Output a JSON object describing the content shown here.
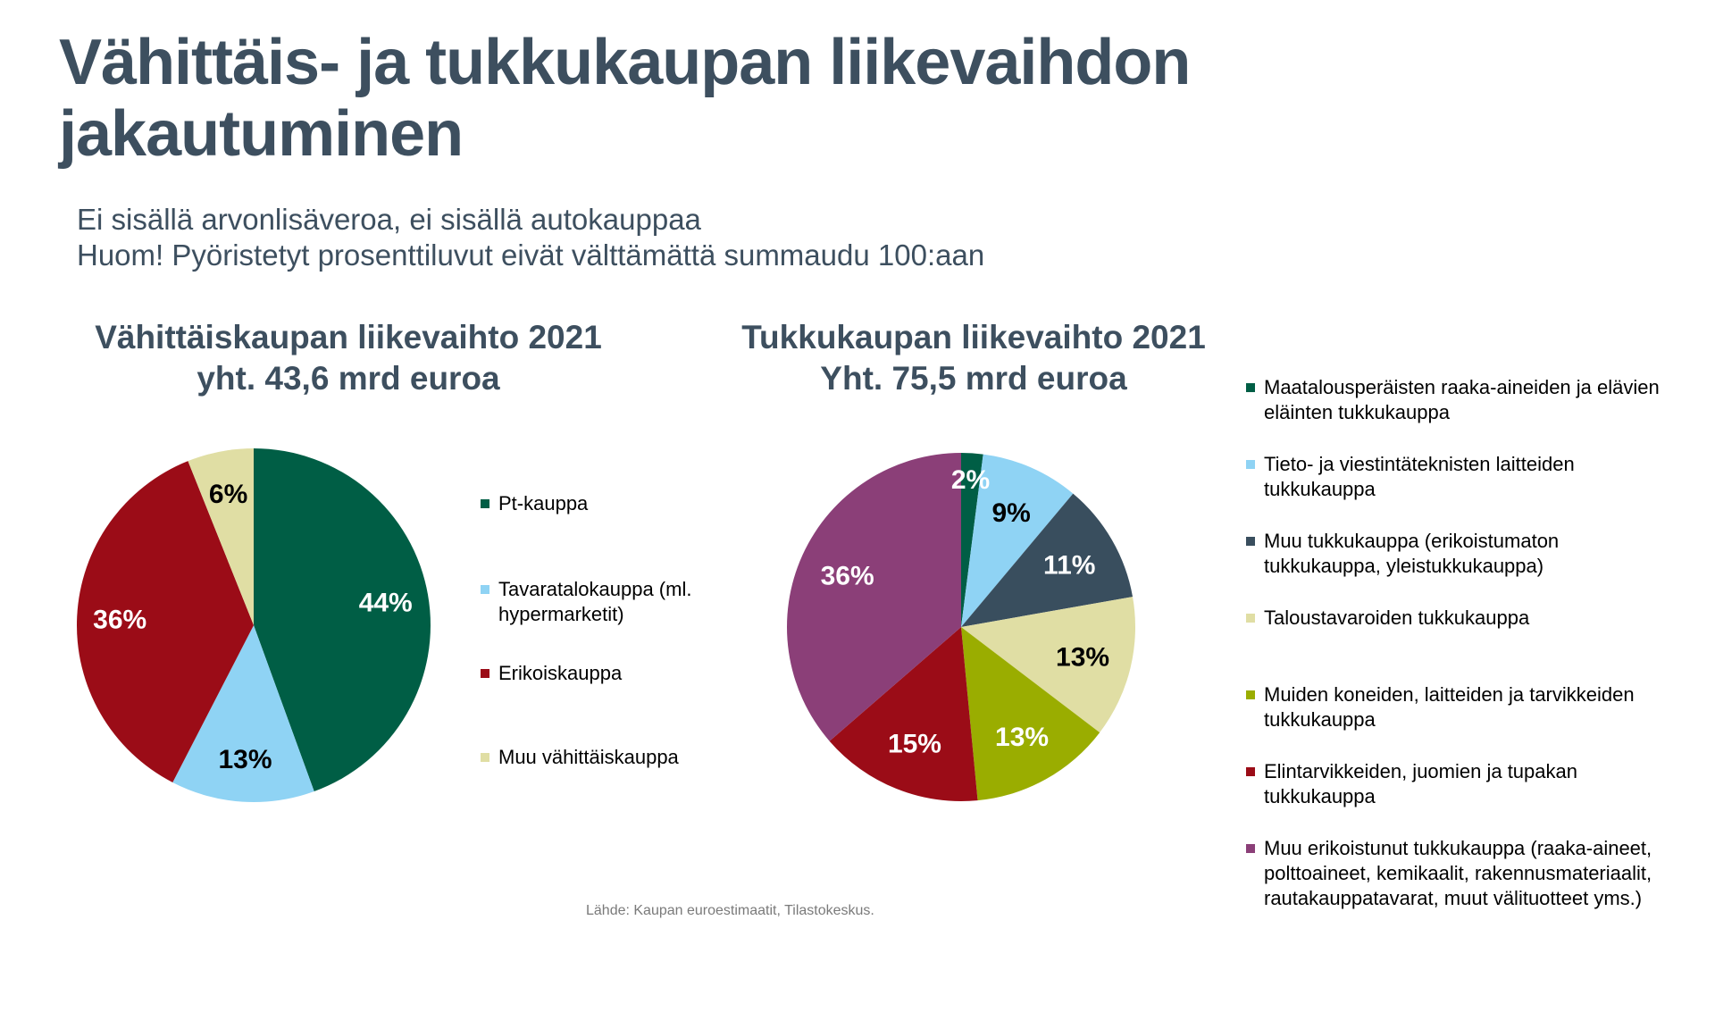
{
  "title": "Vähittäis- ja tukkukaupan liikevaihdon jakautuminen",
  "subtitle_line1": "Ei sisällä arvonlisäveroa, ei sisällä autokauppaa",
  "subtitle_line2": "Huom! Pyöristetyt prosenttiluvut eivät välttämättä summaudu 100:aan",
  "source": "Lähde: Kaupan euroestimaatit, Tilastokeskus.",
  "chart_data": [
    {
      "type": "pie",
      "title_line1": "Vähittäiskaupan liikevaihto 2021",
      "title_line2": "yht. 43,6 mrd euroa",
      "legend_position": "right",
      "slices": [
        {
          "label": "Pt-kauppa",
          "value": 44,
          "display": "44%",
          "color": "#005e45",
          "label_color": "#ffffff"
        },
        {
          "label": "Tavaratalokauppa (ml. hypermarketit)",
          "value": 13,
          "display": "13%",
          "color": "#8fd3f4",
          "label_color": "#000000"
        },
        {
          "label": "Erikoiskauppa",
          "value": 36,
          "display": "36%",
          "color": "#9b0c17",
          "label_color": "#ffffff"
        },
        {
          "label": "Muu vähittäiskauppa",
          "value": 6,
          "display": "6%",
          "color": "#e0dea4",
          "label_color": "#000000"
        }
      ]
    },
    {
      "type": "pie",
      "title_line1": "Tukkukaupan liikevaihto 2021",
      "title_line2": "Yht. 75,5 mrd euroa",
      "legend_position": "right",
      "slices": [
        {
          "label": "Maatalousperäisten raaka-aineiden ja elävien eläinten tukkukauppa",
          "value": 2,
          "display": "2%",
          "color": "#005e45",
          "label_color": "#ffffff"
        },
        {
          "label": "Tieto- ja viestintäteknisten laitteiden tukkukauppa",
          "value": 9,
          "display": "9%",
          "color": "#8fd3f4",
          "label_color": "#000000"
        },
        {
          "label": "Muu tukkukauppa (erikoistumaton tukkukauppa, yleistukkukauppa)",
          "value": 11,
          "display": "11%",
          "color": "#394e5e",
          "label_color": "#ffffff"
        },
        {
          "label": "Taloustavaroiden tukkukauppa",
          "value": 13,
          "display": "13%",
          "color": "#e0dea4",
          "label_color": "#000000"
        },
        {
          "label": "Muiden koneiden, laitteiden ja tarvikkeiden tukkukauppa",
          "value": 13,
          "display": "13%",
          "color": "#9aad00",
          "label_color": "#ffffff"
        },
        {
          "label": "Elintarvikkeiden, juomien ja tupakan tukkukauppa",
          "value": 15,
          "display": "15%",
          "color": "#9b0c17",
          "label_color": "#ffffff"
        },
        {
          "label": "Muu erikoistunut tukkukauppa (raaka-aineet, polttoaineet, kemikaalit, rakennusmateriaalit, rautakauppatavarat, muut välituotteet yms.)",
          "value": 36,
          "display": "36%",
          "color": "#8b3f78",
          "label_color": "#ffffff"
        }
      ]
    }
  ]
}
